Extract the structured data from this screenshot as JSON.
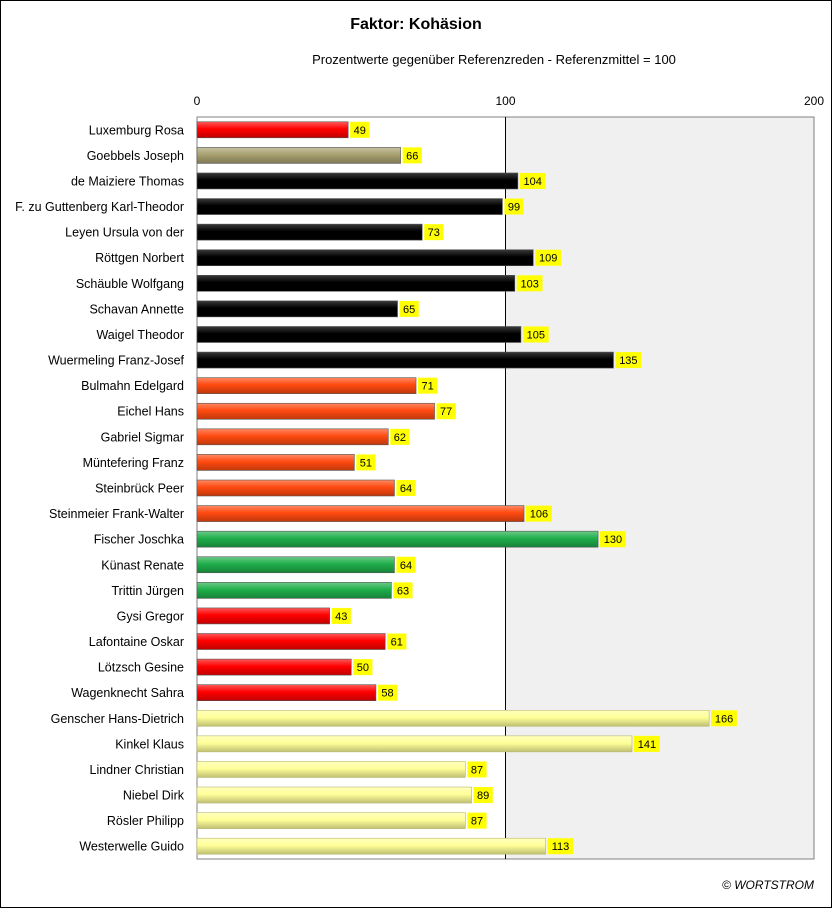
{
  "chart_data": {
    "type": "bar",
    "orientation": "horizontal",
    "title": "Faktor: Kohäsion",
    "subtitle": "Prozentwerte  gegenüber Referenzreden - Referenzmittel = 100",
    "xlim": [
      0,
      200
    ],
    "xticks": [
      0,
      100,
      200
    ],
    "reference_line": 100,
    "shaded_region": [
      100,
      200
    ],
    "grid": false,
    "legend": "none",
    "data_labels": true,
    "categories": [
      "Luxemburg Rosa",
      "Goebbels Joseph",
      "de Maiziere Thomas",
      "F. zu Guttenberg Karl-Theodor",
      "Leyen Ursula von der",
      "Röttgen Norbert",
      "Schäuble Wolfgang",
      "Schavan Annette",
      "Waigel Theodor",
      "Wuermeling Franz-Josef",
      "Bulmahn Edelgard",
      "Eichel Hans",
      "Gabriel Sigmar",
      "Müntefering Franz",
      "Steinbrück Peer",
      "Steinmeier Frank-Walter",
      "Fischer Joschka",
      "Künast Renate",
      "Trittin Jürgen",
      "Gysi Gregor",
      "Lafontaine Oskar",
      "Lötzsch Gesine",
      "Wagenknecht Sahra",
      "Genscher Hans-Dietrich",
      "Kinkel Klaus",
      "Lindner Christian",
      "Niebel Dirk",
      "Rösler Philipp",
      "Westerwelle Guido"
    ],
    "values": [
      49,
      66,
      104,
      99,
      73,
      109,
      103,
      65,
      105,
      135,
      71,
      77,
      62,
      51,
      64,
      106,
      130,
      64,
      63,
      43,
      61,
      50,
      58,
      166,
      141,
      87,
      89,
      87,
      113
    ],
    "bar_colors": [
      "#ff0000",
      "#a8a070",
      "#000000",
      "#000000",
      "#000000",
      "#000000",
      "#000000",
      "#000000",
      "#000000",
      "#000000",
      "#ff4a10",
      "#ff4a10",
      "#ff4a10",
      "#ff4a10",
      "#ff4a10",
      "#ff4a10",
      "#1fae4a",
      "#1fae4a",
      "#1fae4a",
      "#ff0000",
      "#ff0000",
      "#ff0000",
      "#ff0000",
      "#ffff99",
      "#ffff99",
      "#ffff99",
      "#ffff99",
      "#ffff99",
      "#ffff99"
    ],
    "label_background": "#ffff00"
  },
  "footer": {
    "copyright": "© WORTSTROM"
  }
}
